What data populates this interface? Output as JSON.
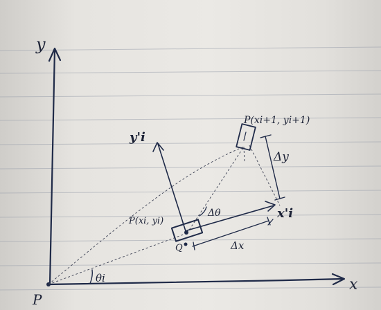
{
  "labels": {
    "y_axis": "y",
    "x_axis": "x",
    "origin": "P",
    "theta_i": "θi",
    "p_i": "P(xi, yi)",
    "p_i1": "P(xi+1, yi+1)",
    "q": "Q",
    "delta_x": "Δx",
    "delta_y": "Δy",
    "delta_theta": "Δθ",
    "x_prime": "x'i",
    "y_prime": "y'i"
  },
  "colors": {
    "ink": "#1f2a48",
    "paper": "#e8e6e2",
    "rule_line": "#9aa0ac"
  }
}
